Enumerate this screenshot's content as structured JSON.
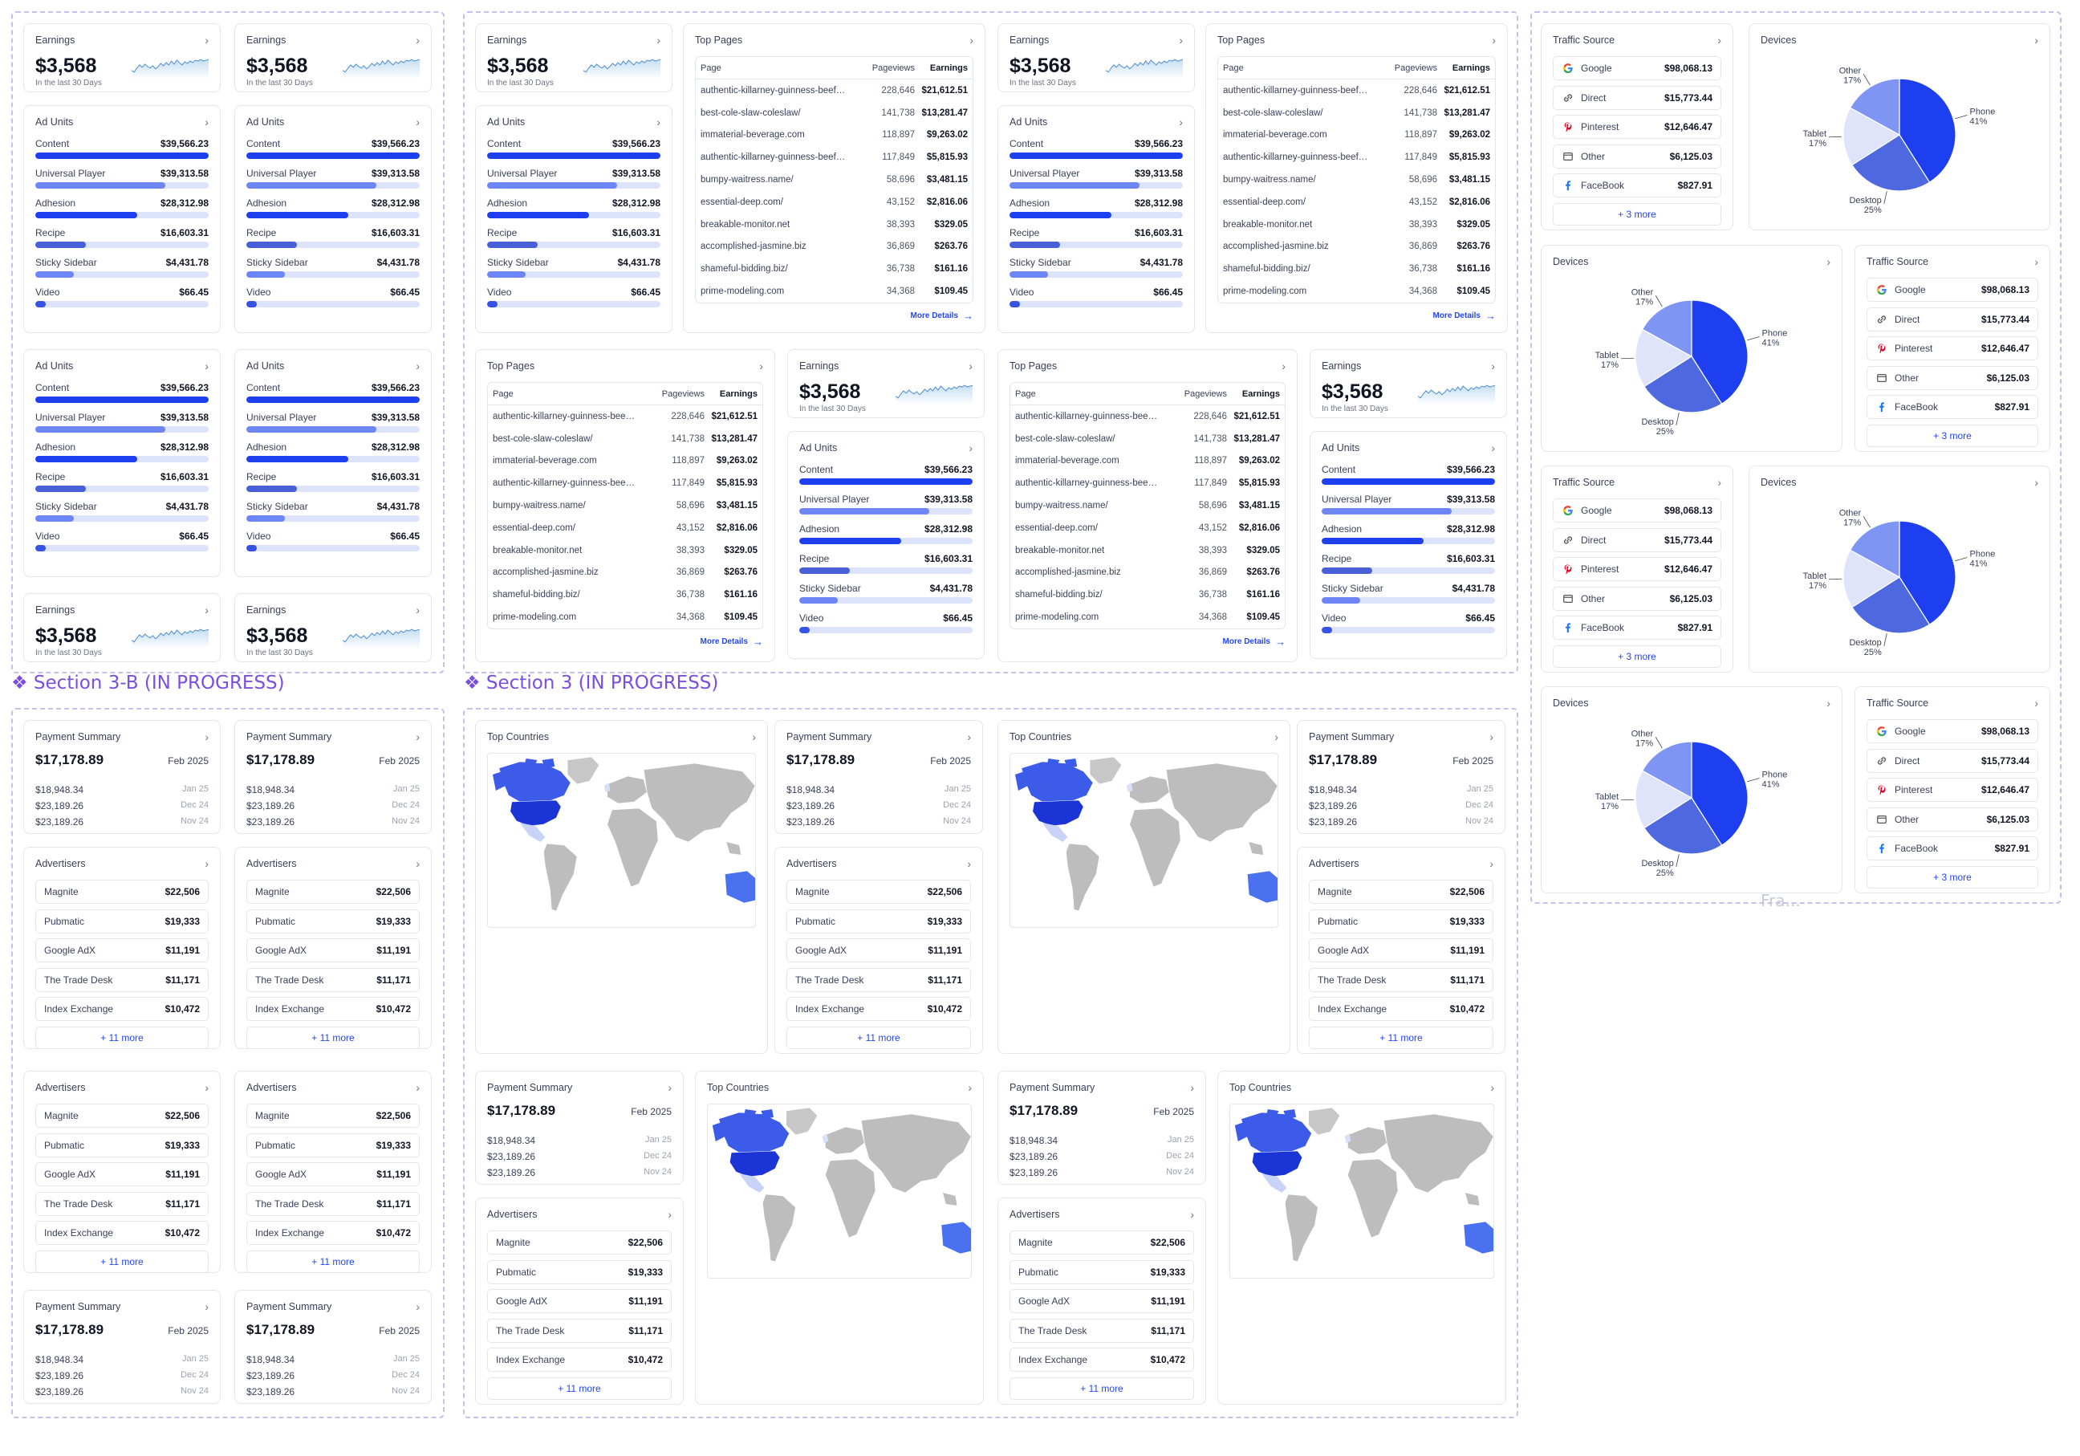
{
  "sections": [
    {
      "title": "❖ Section 3-B (IN PROGRESS)"
    },
    {
      "title": "❖ Section 3 (IN PROGRESS)"
    }
  ],
  "fragment_label": "Fra...",
  "earnings": {
    "title": "Earnings",
    "value": "$3,568",
    "subtitle": "In the last 30 Days",
    "sparkline": [
      22,
      24,
      19,
      15,
      18,
      14,
      17,
      19,
      16,
      20,
      17,
      13,
      16,
      12,
      15,
      10,
      14,
      9,
      12,
      15,
      11,
      13,
      10,
      12,
      9,
      10,
      8,
      10,
      9,
      8
    ]
  },
  "ad_units": {
    "title": "Ad Units",
    "items": [
      {
        "label": "Content",
        "value": "$39,566.23",
        "level": 1.0,
        "color": "#1d3ff0"
      },
      {
        "label": "Universal Player",
        "value": "$39,313.58",
        "level": 0.75,
        "color": "#6e86f5"
      },
      {
        "label": "Adhesion",
        "value": "$28,312.98",
        "level": 0.59,
        "color": "#1d3ff0"
      },
      {
        "label": "Recipe",
        "value": "$16,603.31",
        "level": 0.29,
        "color": "#4760d8"
      },
      {
        "label": "Sticky Sidebar",
        "value": "$4,431.78",
        "level": 0.22,
        "color": "#6e86f5"
      },
      {
        "label": "Video",
        "value": "$66.45",
        "level": 0.06,
        "color": "#3653e6"
      }
    ]
  },
  "top_pages": {
    "title": "Top Pages",
    "col_page": "Page",
    "col_views": "Pageviews",
    "col_earn": "Earnings",
    "more": "More Details",
    "rows": [
      {
        "page": "authentic-killarney-guinness-beef-stew",
        "views": "228,646",
        "earn": "$21,612.51"
      },
      {
        "page": "best-cole-slaw-coleslaw/",
        "views": "141,738",
        "earn": "$13,281.47"
      },
      {
        "page": "immaterial-beverage.com",
        "views": "118,897",
        "earn": "$9,263.02"
      },
      {
        "page": "authentic-killarney-guinness-beef-stew",
        "views": "117,849",
        "earn": "$5,815.93"
      },
      {
        "page": "bumpy-waitress.name/",
        "views": "58,696",
        "earn": "$3,481.15"
      },
      {
        "page": "essential-deep.com/",
        "views": "43,152",
        "earn": "$2,816.06"
      },
      {
        "page": "breakable-monitor.net",
        "views": "38,393",
        "earn": "$329.05"
      },
      {
        "page": "accomplished-jasmine.biz",
        "views": "36,869",
        "earn": "$263.76"
      },
      {
        "page": "shameful-bidding.biz/",
        "views": "36,738",
        "earn": "$161.16"
      },
      {
        "page": "prime-modeling.com",
        "views": "34,368",
        "earn": "$109.45"
      }
    ]
  },
  "traffic_source": {
    "title": "Traffic Source",
    "more": "+ 3 more",
    "items": [
      {
        "label": "Google",
        "value": "$98,068.13",
        "icon": "google-icon"
      },
      {
        "label": "Direct",
        "value": "$15,773.44",
        "icon": "link-icon"
      },
      {
        "label": "Pinterest",
        "value": "$12,646.47",
        "icon": "pinterest-icon"
      },
      {
        "label": "Other",
        "value": "$6,125.03",
        "icon": "window-icon"
      },
      {
        "label": "FaceBook",
        "value": "$827.91",
        "icon": "facebook-icon"
      }
    ]
  },
  "devices": {
    "title": "Devices",
    "slices": [
      {
        "name": "Phone",
        "pct": "41%",
        "value": 41,
        "color": "#1d3ff0"
      },
      {
        "name": "Desktop",
        "pct": "25%",
        "value": 25,
        "color": "#4e68e0"
      },
      {
        "name": "Tablet",
        "pct": "17%",
        "value": 17,
        "color": "#dfe4fa"
      },
      {
        "name": "Other",
        "pct": "17%",
        "value": 17,
        "color": "#7f95f3"
      }
    ]
  },
  "payment_summary": {
    "title": "Payment Summary",
    "total": "$17,178.89",
    "total_date": "Feb 2025",
    "rows": [
      {
        "amount": "$18,948.34",
        "date": "Jan 25"
      },
      {
        "amount": "$23,189.26",
        "date": "Dec 24"
      },
      {
        "amount": "$23,189.26",
        "date": "Nov 24"
      }
    ]
  },
  "advertisers": {
    "title": "Advertisers",
    "more": "+ 11 more",
    "items": [
      {
        "label": "Magnite",
        "value": "$22,506"
      },
      {
        "label": "Pubmatic",
        "value": "$19,333"
      },
      {
        "label": "Google AdX",
        "value": "$11,191"
      },
      {
        "label": "The Trade Desk",
        "value": "$11,171"
      },
      {
        "label": "Index Exchange",
        "value": "$10,472"
      }
    ]
  },
  "top_countries": {
    "title": "Top Countries"
  }
}
